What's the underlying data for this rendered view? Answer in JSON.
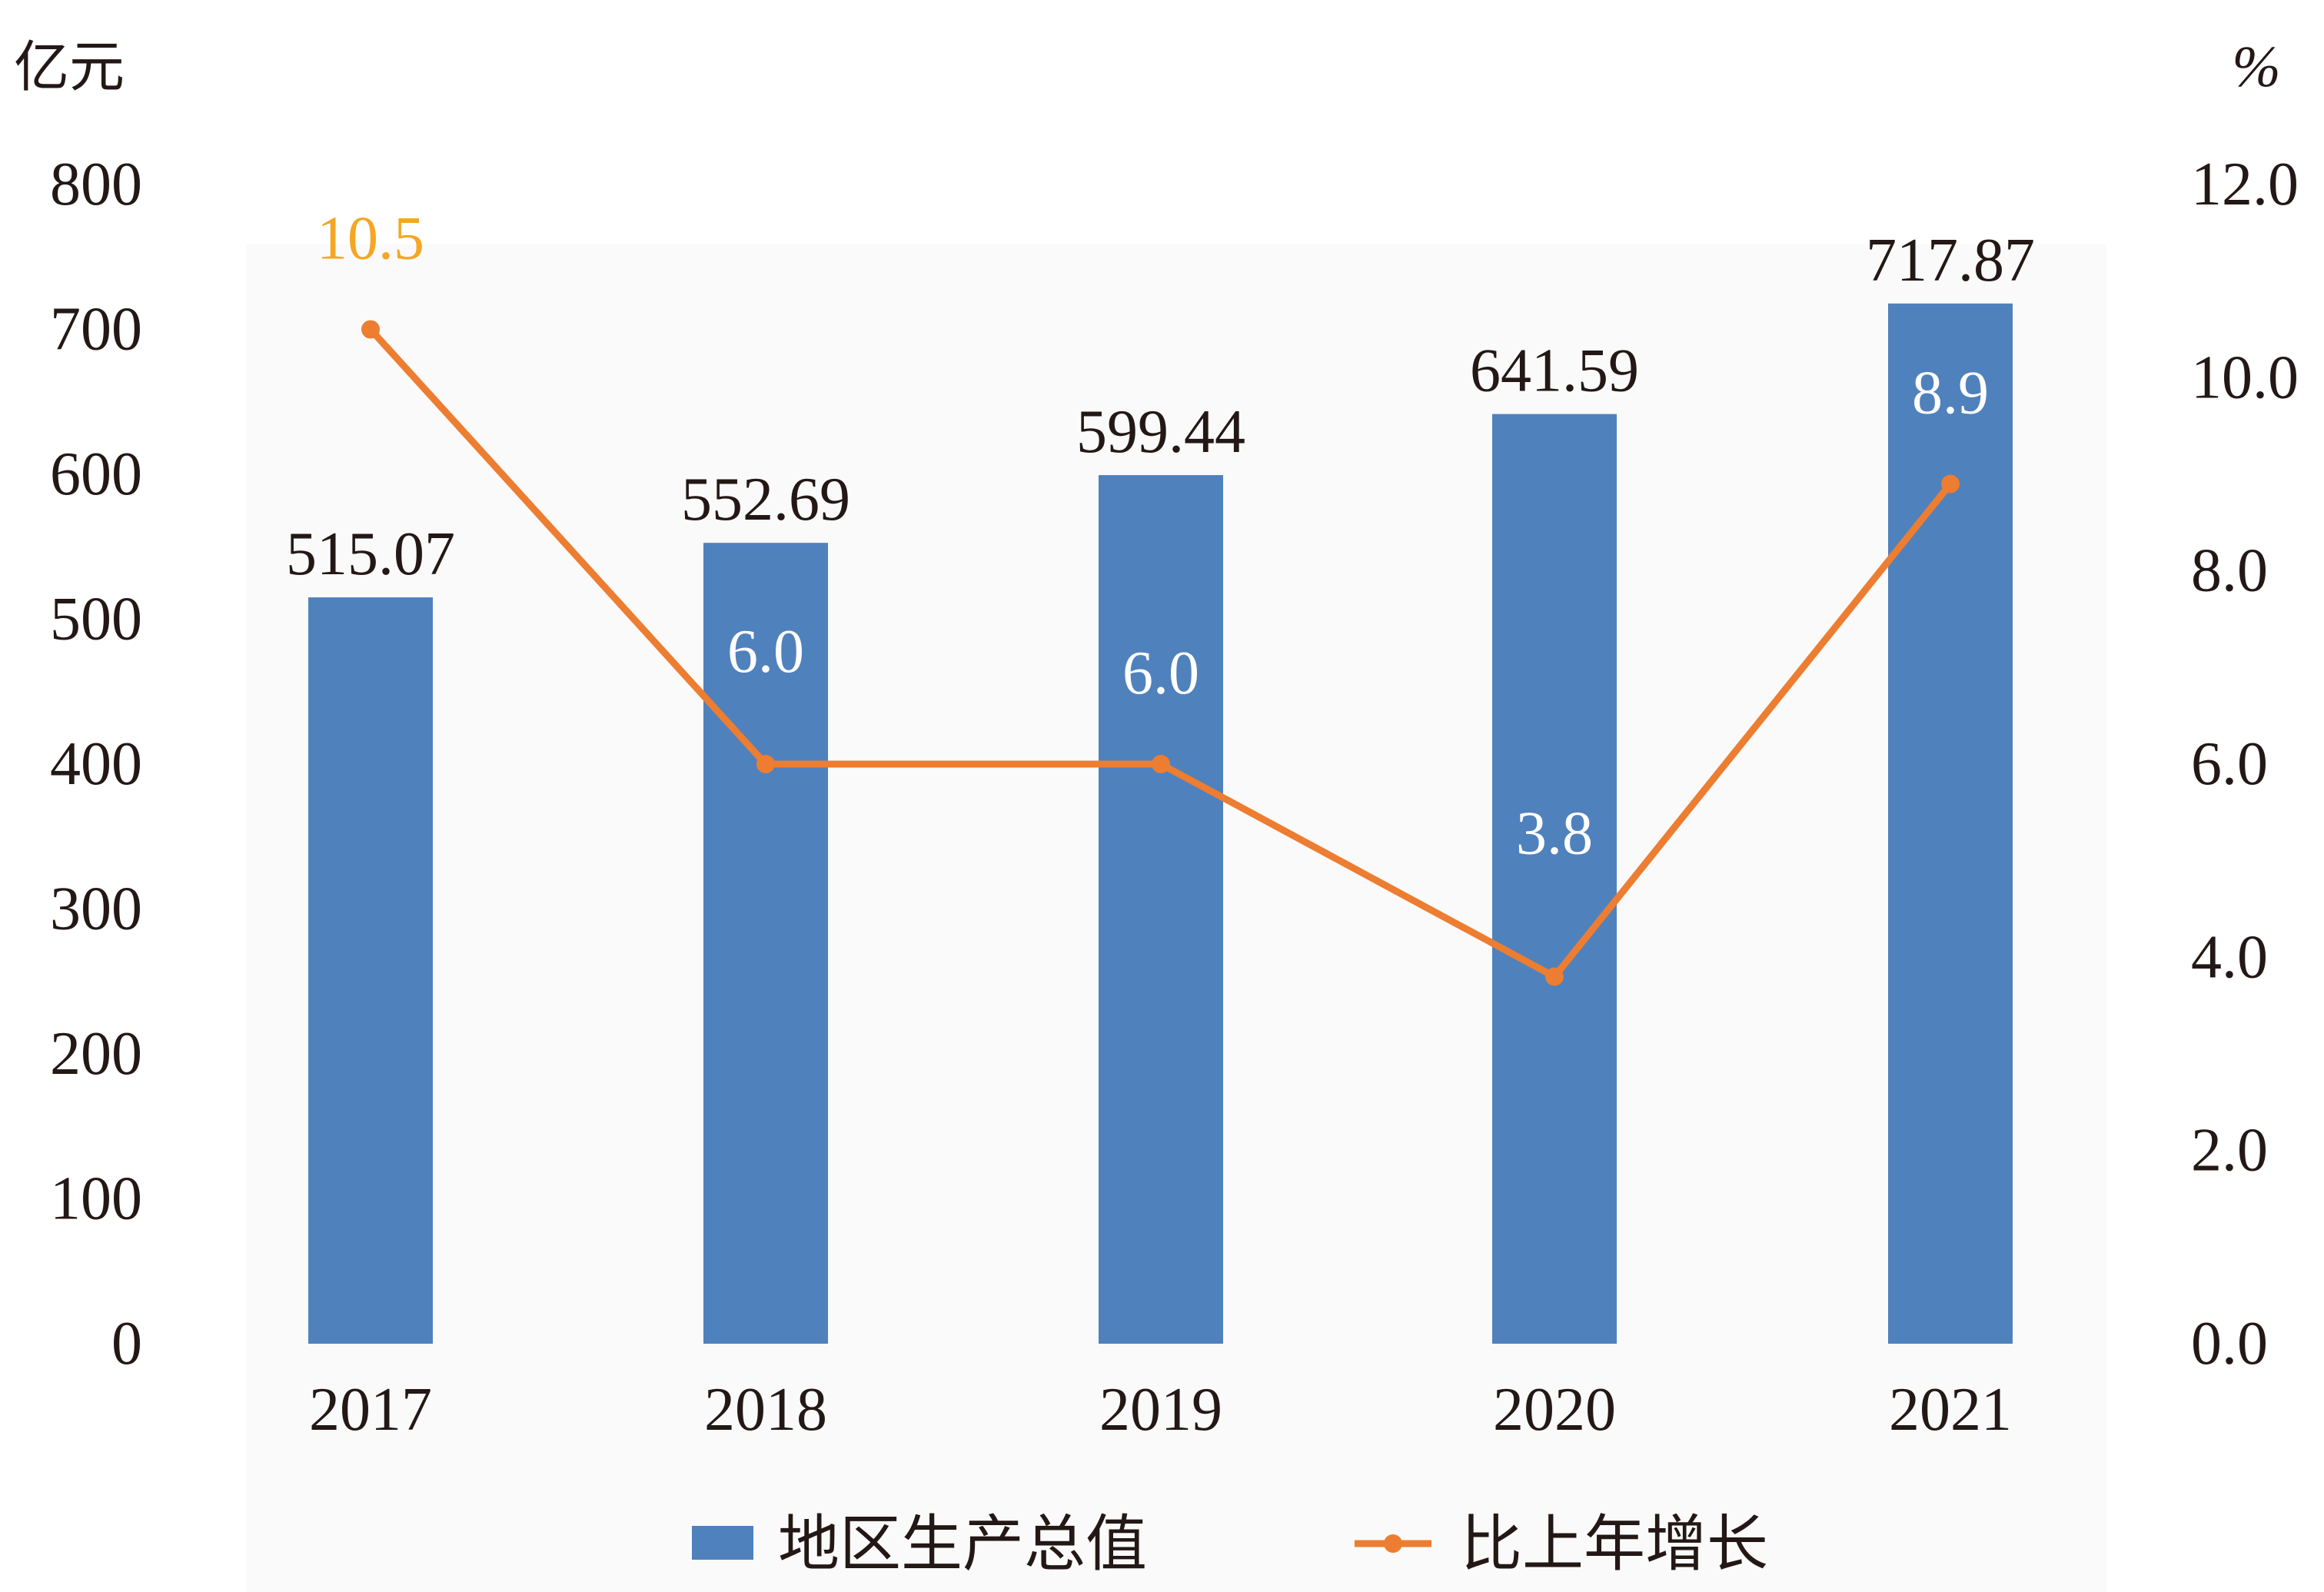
{
  "chart_data": {
    "type": "bar",
    "categories": [
      "2017",
      "2018",
      "2019",
      "2020",
      "2021"
    ],
    "series": [
      {
        "name": "地区生产总值",
        "type": "bar",
        "axis": "left",
        "values": [
          515.07,
          552.69,
          599.44,
          641.59,
          717.87
        ],
        "labels": [
          "515.07",
          "552.69",
          "599.44",
          "641.59",
          "717.87"
        ],
        "color": "#4F81BD"
      },
      {
        "name": "比上年增长",
        "type": "line",
        "axis": "right",
        "values": [
          10.5,
          6.0,
          6.0,
          3.8,
          8.9
        ],
        "labels": [
          "10.5",
          "6.0",
          "6.0",
          "3.8",
          "8.9"
        ],
        "color": "#ED7D31",
        "label_colors": [
          "#F5A623",
          "#FFFFFF",
          "#FFFFFF",
          "#FFFFFF",
          "#FFFFFF"
        ]
      }
    ],
    "y_left": {
      "unit": "亿元",
      "ylim": [
        0,
        800
      ],
      "ticks": [
        "0",
        "100",
        "200",
        "300",
        "400",
        "500",
        "600",
        "700",
        "800"
      ]
    },
    "y_right": {
      "unit": "%",
      "ylim": [
        0,
        12
      ],
      "ticks": [
        "0.0",
        "2.0",
        "4.0",
        "6.0",
        "8.0",
        "10.0",
        "12.0"
      ]
    },
    "legend_position": "bottom",
    "grid": false,
    "plot_background": "#FAFAFA"
  }
}
